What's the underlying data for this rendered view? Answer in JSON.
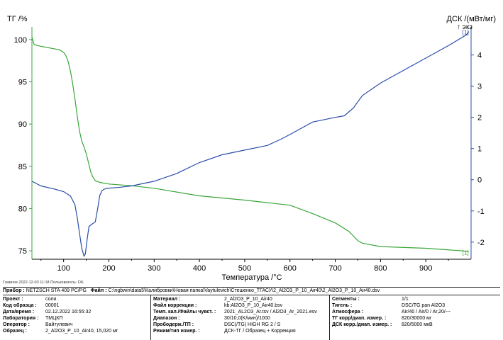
{
  "chart_data": {
    "type": "line",
    "y_left_label": "ТГ /%",
    "y_right_label": "ДСК /(мВт/мг)",
    "exo_label": "↑ экз",
    "x_label": "Температура /°C",
    "xlim": [
      30,
      1000
    ],
    "ylim_left": [
      74,
      101.5
    ],
    "ylim_right": [
      -2.55,
      4.9
    ],
    "x_ticks": [
      100,
      200,
      300,
      400,
      500,
      600,
      700,
      800,
      900
    ],
    "y_left_ticks": [
      75,
      80,
      85,
      90,
      95,
      100
    ],
    "y_right_ticks": [
      -2,
      -1,
      0,
      1,
      2,
      3,
      4
    ],
    "series": [
      {
        "axis": "left",
        "color": "#3aa63a",
        "x": [
          30,
          35,
          50,
          70,
          90,
          100,
          105,
          110,
          115,
          120,
          125,
          130,
          135,
          140,
          145,
          150,
          155,
          160,
          165,
          170,
          180,
          200,
          250,
          300,
          400,
          500,
          550,
          600,
          650,
          700,
          730,
          750,
          760,
          800,
          900,
          980,
          995
        ],
        "y": [
          100.3,
          99.4,
          99.2,
          99.0,
          98.8,
          98.5,
          98.1,
          97.4,
          96.3,
          94.8,
          93.0,
          91.0,
          89.2,
          88.0,
          87.3,
          86.5,
          85.4,
          84.3,
          83.7,
          83.3,
          83.1,
          82.9,
          82.7,
          82.4,
          81.5,
          81.0,
          80.7,
          80.4,
          79.4,
          78.3,
          77.3,
          76.2,
          75.9,
          75.5,
          75.3,
          75.0,
          74.9
        ]
      },
      {
        "axis": "right",
        "color": "#2a4ea8",
        "x": [
          30,
          50,
          80,
          100,
          115,
          125,
          130,
          135,
          140,
          145,
          148,
          152,
          156,
          160,
          165,
          170,
          175,
          180,
          185,
          190,
          195,
          200,
          220,
          250,
          300,
          350,
          400,
          450,
          500,
          550,
          580,
          600,
          650,
          700,
          720,
          740,
          760,
          800,
          850,
          900,
          950,
          990,
          995
        ],
        "y": [
          -0.05,
          -0.2,
          -0.3,
          -0.38,
          -0.52,
          -0.8,
          -1.2,
          -1.7,
          -2.2,
          -2.45,
          -2.38,
          -1.9,
          -1.5,
          -1.45,
          -1.4,
          -1.35,
          -0.95,
          -0.5,
          -0.35,
          -0.3,
          -0.28,
          -0.27,
          -0.25,
          -0.2,
          -0.05,
          0.2,
          0.55,
          0.8,
          0.95,
          1.1,
          1.3,
          1.45,
          1.85,
          2.0,
          2.05,
          2.3,
          2.7,
          3.1,
          3.5,
          3.9,
          4.3,
          4.65,
          4.75
        ]
      }
    ],
    "annotations": [
      "[1]",
      "[1]"
    ]
  },
  "footer": {
    "line": "Главное    2022-12-03 11:18    Пользователь: DIL"
  },
  "info": {
    "device_label": "Прибор :",
    "device": "NETZSCH STA 409 PC/PG",
    "file_label": "Файл :",
    "file": "C:\\ngbwin\\data5\\Калибровки\\Новая папка\\Vaytulevich\\Стешенко_ТГАСУ\\2_Al2O3_P_10_Air40\\2_Al2O3_P_10_Air40.dsv",
    "col1": [
      {
        "label": "Проект :",
        "value": "соли"
      },
      {
        "label": "Код образца :",
        "value": "00001"
      },
      {
        "label": "Дата/время :",
        "value": "02.12.2022 16:55:32"
      },
      {
        "label": "Лаборатория :",
        "value": "ТМЦКП"
      },
      {
        "label": "Оператор :",
        "value": "Вайтулевич"
      },
      {
        "label": "Образец :",
        "value": "2_Al2O3_P_10_Air40, 15,020 мг"
      }
    ],
    "col2": [
      {
        "label": "Материал :",
        "value": "2_Al2O3_P_10_Air40"
      },
      {
        "label": "Файл коррекции :",
        "value": "kb:Al2O3_P_10_Air40.bsv"
      },
      {
        "label": "Темп. кал./Файлы чувст. :",
        "value": "2021_AL2O3_Ar.tsv / Al2O3_Ar_2021.esv"
      },
      {
        "label": "Диапазон :",
        "value": "30/10,0(K/мин)/1000"
      },
      {
        "label": "Прободерж./ТП :",
        "value": "DSC(/TG) HIGH RG 2 / S"
      },
      {
        "label": "Режим/тип измер. :",
        "value": "ДСК-ТГ / Образец + Коррекция"
      }
    ],
    "col3": [
      {
        "label": "Сегменты :",
        "value": "1/1"
      },
      {
        "label": "Тигель :",
        "value": "DSC/TG pan Al2O3"
      },
      {
        "label": "Атмосфера :",
        "value": "Air/40 / Air/0 / Ar,20/---"
      },
      {
        "label": "ТГ корр/диап. измер. :",
        "value": "820/30000 мг"
      },
      {
        "label": "ДСК корр./диап. измер. :",
        "value": "820/5000 мкВ"
      }
    ]
  }
}
